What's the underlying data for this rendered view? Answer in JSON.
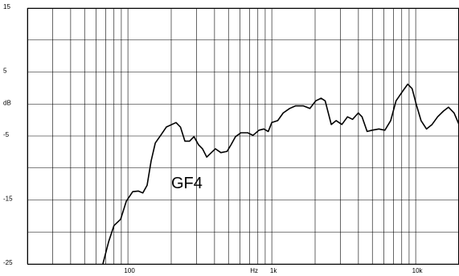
{
  "chart_data": {
    "type": "line",
    "xscale": "log",
    "color": "#000000",
    "annotation": "GF4",
    "annotation_x": 200,
    "annotation_y": -12.5,
    "x_label": "Hz",
    "xlim": [
      20,
      20000
    ],
    "ylim": [
      -25,
      15
    ],
    "xticks": [
      {
        "value": 100,
        "label": "100"
      },
      {
        "value": 1000,
        "label": "1k"
      },
      {
        "value": 10000,
        "label": "10k"
      }
    ],
    "xgrid": [
      20,
      30,
      40,
      50,
      60,
      70,
      80,
      90,
      100,
      200,
      300,
      400,
      500,
      600,
      700,
      800,
      900,
      1000,
      2000,
      3000,
      4000,
      5000,
      6000,
      7000,
      8000,
      9000,
      10000,
      20000
    ],
    "yticks": [
      {
        "value": 15,
        "label": "15"
      },
      {
        "value": 5,
        "label": "5"
      },
      {
        "value": 0,
        "label": "dB"
      },
      {
        "value": -5,
        "label": "-5"
      },
      {
        "value": -15,
        "label": "-15"
      },
      {
        "value": -25,
        "label": "-25"
      }
    ],
    "ygrid": [
      15,
      10,
      5,
      0,
      -5,
      -10,
      -15,
      -20,
      -25
    ],
    "grid": true,
    "x": [
      67,
      73.5,
      80,
      89,
      97.5,
      108,
      118,
      127,
      136,
      145,
      155,
      169,
      185,
      202,
      216,
      232,
      249,
      268,
      288,
      310,
      330,
      353,
      380,
      405,
      443,
      489,
      520,
      560,
      610,
      680,
      740,
      815,
      880,
      945,
      1000,
      1100,
      1200,
      1330,
      1460,
      1660,
      1840,
      2020,
      2200,
      2350,
      2590,
      2800,
      3070,
      3360,
      3640,
      3990,
      4240,
      4600,
      4980,
      5550,
      6110,
      6700,
      7300,
      8000,
      8800,
      9450,
      10100,
      10900,
      11900,
      13000,
      14200,
      15600,
      16900,
      18500,
      20000
    ],
    "values": [
      -25,
      -21.5,
      -19,
      -18,
      -15.2,
      -13.7,
      -13.6,
      -13.9,
      -12.7,
      -8.9,
      -6.1,
      -4.9,
      -3.6,
      -3.2,
      -2.9,
      -3.6,
      -5.8,
      -5.8,
      -5.1,
      -6.4,
      -7,
      -8.3,
      -7.6,
      -7,
      -7.6,
      -7.4,
      -6.4,
      -5.1,
      -4.5,
      -4.5,
      -4.9,
      -4.1,
      -3.9,
      -4.3,
      -2.9,
      -2.6,
      -1.4,
      -0.7,
      -0.3,
      -0.3,
      -0.7,
      0.5,
      0.9,
      0.5,
      -3.2,
      -2.6,
      -3.2,
      -2,
      -2.4,
      -1.4,
      -2,
      -4.3,
      -4.1,
      -3.9,
      -4.1,
      -2.6,
      0.5,
      1.8,
      3.1,
      2.4,
      -0.1,
      -2.6,
      -3.9,
      -3.2,
      -2,
      -1.1,
      -0.5,
      -1.4,
      -3.2
    ]
  }
}
